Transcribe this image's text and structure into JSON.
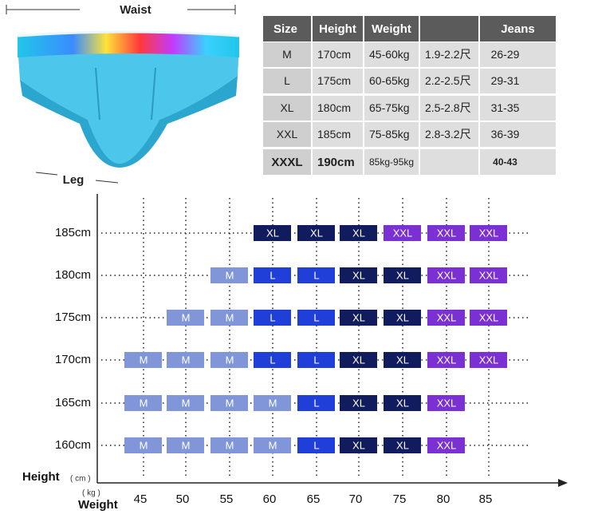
{
  "product": {
    "waist_label": "Waist",
    "leg_label": "Leg"
  },
  "table": {
    "header": [
      "Size",
      "Height",
      "Weight",
      null,
      "Jeans"
    ],
    "rows": [
      [
        "M",
        "170cm",
        "45-60kg",
        "1.9-2.2尺",
        "26-29"
      ],
      [
        "L",
        "175cm",
        "60-65kg",
        "2.2-2.5尺",
        "29-31"
      ],
      [
        "XL",
        "180cm",
        "65-75kg",
        "2.5-2.8尺",
        "31-35"
      ],
      [
        "XXL",
        "185cm",
        "75-85kg",
        "2.8-3.2尺",
        "36-39"
      ],
      [
        "XXXL",
        "190cm",
        "85kg-95kg",
        null,
        "40-43"
      ]
    ]
  },
  "grid": {
    "y_title": "Height",
    "y_unit": "( cm )",
    "x_title": "Weight",
    "x_unit": "( kg )",
    "columns": [
      "45",
      "50",
      "55",
      "60",
      "65",
      "70",
      "75",
      "80",
      "85"
    ],
    "size_colors": {
      "M": "#8096d8",
      "L": "#1f3fd8",
      "XL": "#111c5e",
      "XXL": "#7a30d2"
    },
    "rows": [
      {
        "label": "185cm",
        "cells": [
          null,
          null,
          null,
          "XL",
          "XL",
          "XL",
          "XXL",
          "XXL",
          "XXL"
        ]
      },
      {
        "label": "180cm",
        "cells": [
          null,
          null,
          "M",
          "L",
          "L",
          "XL",
          "XL",
          "XXL",
          "XXL"
        ]
      },
      {
        "label": "175cm",
        "cells": [
          null,
          "M",
          "M",
          "L",
          "L",
          "XL",
          "XL",
          "XXL",
          "XXL"
        ]
      },
      {
        "label": "170cm",
        "cells": [
          "M",
          "M",
          "M",
          "L",
          "L",
          "XL",
          "XL",
          "XXL",
          "XXL"
        ]
      },
      {
        "label": "165cm",
        "cells": [
          "M",
          "M",
          "M",
          "M",
          "L",
          "XL",
          "XL",
          "XXL",
          null
        ]
      },
      {
        "label": "160cm",
        "cells": [
          "M",
          "M",
          "M",
          "M",
          "L",
          "XL",
          "XL",
          "XXL",
          null
        ]
      }
    ]
  }
}
